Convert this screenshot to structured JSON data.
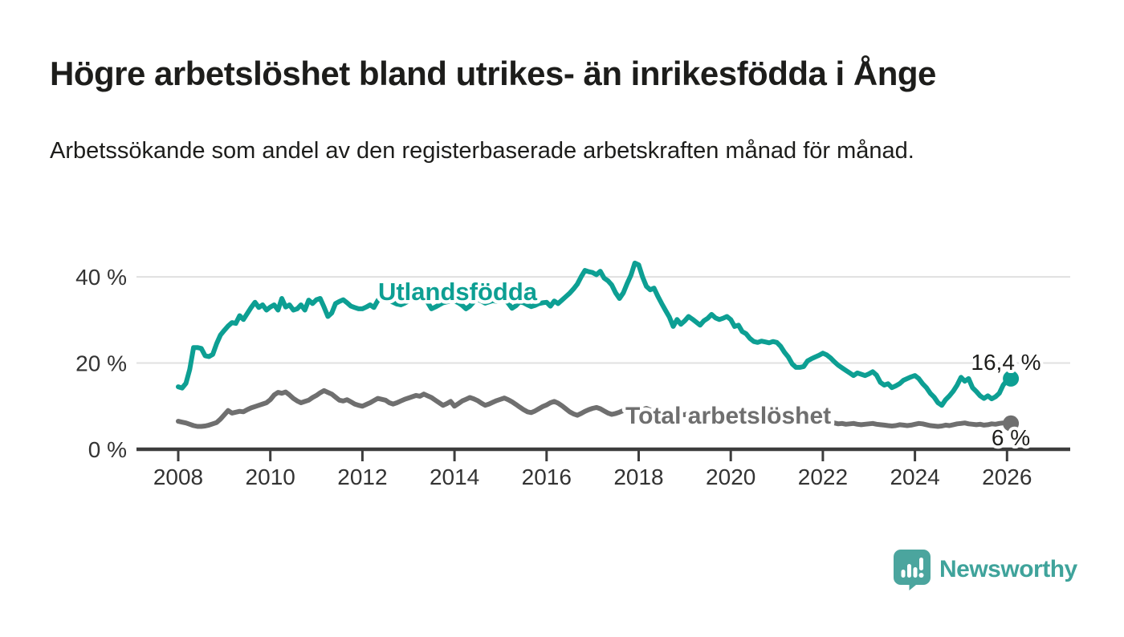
{
  "header": {
    "title": "Högre arbetslöshet bland utrikes- än inrikesfödda i Ånge",
    "subtitle": "Arbetssökande som andel av den registerbaserade arbetskraften månad för månad."
  },
  "footer": {
    "brand": "Newsworthy"
  },
  "colors": {
    "accent_teal": "#0d9f93",
    "line_gray": "#6f6f6f",
    "grid": "#e0e0e0",
    "axis": "#3d3d3d",
    "text": "#1d1d1b",
    "logo_teal": "#4ba59e"
  },
  "chart_data": {
    "type": "line",
    "title": "",
    "xlabel": "",
    "ylabel": "",
    "x_start_year": 2008,
    "interval": "monthly",
    "ylim": [
      0,
      44
    ],
    "grid": "horizontal",
    "x_axis": {
      "ticks": [
        2008,
        2010,
        2012,
        2014,
        2016,
        2018,
        2020,
        2022,
        2024,
        2026
      ]
    },
    "y_axis": {
      "ticks": [
        {
          "label": "0 %",
          "value": 0
        },
        {
          "label": "20 %",
          "value": 20
        },
        {
          "label": "40 %",
          "value": 40
        }
      ]
    },
    "series": [
      {
        "name": "Utlandsfödda",
        "color": "#0d9f93",
        "end_label": "16,4 %",
        "end_value": 16.4,
        "values": [
          14.5,
          14.2,
          15.3,
          18.5,
          23.6,
          23.6,
          23.4,
          21.7,
          21.5,
          22.0,
          24.5,
          26.5,
          27.6,
          28.6,
          29.4,
          29.2,
          31.0,
          30.1,
          31.5,
          32.9,
          34.1,
          32.9,
          33.5,
          32.3,
          33.0,
          33.5,
          32.3,
          35.0,
          33.0,
          33.5,
          32.3,
          32.6,
          33.5,
          32.3,
          34.6,
          33.8,
          34.7,
          35.0,
          33.0,
          30.8,
          31.6,
          33.8,
          34.3,
          34.7,
          34.0,
          33.2,
          32.9,
          32.6,
          32.6,
          33.0,
          33.5,
          32.9,
          34.5,
          35.6,
          35.0,
          34.5,
          34.1,
          33.7,
          33.5,
          33.9,
          34.4,
          35.0,
          35.3,
          34.9,
          34.7,
          34.1,
          32.6,
          33.0,
          33.5,
          34.0,
          34.2,
          34.4,
          34.4,
          34.0,
          33.4,
          32.6,
          33.2,
          34.2,
          34.8,
          34.4,
          33.9,
          34.2,
          34.5,
          34.3,
          34.5,
          34.8,
          33.9,
          32.7,
          33.3,
          34.2,
          34.0,
          33.5,
          33.1,
          33.4,
          33.8,
          34.0,
          34.1,
          33.2,
          34.4,
          33.8,
          34.6,
          35.4,
          36.2,
          37.2,
          38.3,
          40.0,
          41.5,
          41.2,
          41.0,
          40.5,
          41.3,
          39.7,
          39.1,
          38.1,
          36.3,
          35.0,
          36.3,
          38.5,
          40.4,
          43.2,
          42.8,
          40.0,
          37.8,
          37.0,
          37.4,
          35.5,
          33.8,
          32.2,
          30.7,
          28.5,
          30.1,
          29.0,
          29.8,
          30.8,
          30.2,
          29.5,
          28.8,
          29.8,
          30.4,
          31.3,
          30.5,
          30.1,
          30.4,
          30.8,
          30.1,
          28.5,
          28.8,
          27.3,
          26.8,
          25.7,
          25.0,
          24.8,
          25.1,
          24.9,
          24.7,
          25.0,
          24.8,
          23.9,
          22.5,
          21.4,
          19.8,
          19.0,
          19.0,
          19.2,
          20.5,
          21.0,
          21.4,
          21.8,
          22.3,
          21.9,
          21.2,
          20.3,
          19.5,
          18.9,
          18.3,
          17.7,
          17.1,
          17.7,
          17.4,
          17.1,
          17.5,
          18.0,
          17.2,
          15.5,
          14.9,
          15.2,
          14.3,
          14.7,
          15.2,
          16.0,
          16.4,
          16.8,
          17.1,
          16.4,
          15.2,
          14.3,
          13.0,
          12.1,
          10.8,
          10.2,
          11.5,
          12.4,
          13.5,
          14.9,
          16.7,
          15.8,
          16.4,
          14.3,
          13.4,
          12.4,
          11.8,
          12.4,
          11.7,
          12.2,
          13.0,
          14.9,
          16.0,
          16.4
        ]
      },
      {
        "name": "Total arbetslöshet",
        "color": "#6f6f6f",
        "end_label": "6 %",
        "end_value": 6.0,
        "values": [
          6.5,
          6.3,
          6.1,
          5.8,
          5.5,
          5.3,
          5.3,
          5.4,
          5.6,
          5.9,
          6.2,
          7.0,
          8.0,
          9.0,
          8.4,
          8.6,
          8.8,
          8.7,
          9.2,
          9.6,
          9.9,
          10.2,
          10.5,
          10.8,
          11.5,
          12.6,
          13.2,
          13.0,
          13.3,
          12.6,
          11.8,
          11.2,
          10.8,
          11.1,
          11.4,
          12.0,
          12.5,
          13.1,
          13.6,
          13.2,
          12.8,
          12.1,
          11.4,
          11.2,
          11.5,
          11.0,
          10.5,
          10.2,
          10.0,
          10.4,
          10.8,
          11.3,
          11.8,
          11.6,
          11.4,
          10.8,
          10.5,
          10.8,
          11.2,
          11.6,
          11.9,
          12.2,
          12.5,
          12.3,
          12.8,
          12.4,
          12.0,
          11.4,
          10.8,
          10.2,
          10.6,
          11.1,
          10.0,
          10.6,
          11.2,
          11.6,
          12.0,
          11.7,
          11.3,
          10.7,
          10.2,
          10.5,
          10.9,
          11.3,
          11.6,
          11.9,
          11.5,
          11.0,
          10.4,
          9.8,
          9.2,
          8.7,
          8.5,
          8.9,
          9.4,
          9.9,
          10.3,
          10.8,
          11.1,
          10.7,
          10.1,
          9.4,
          8.7,
          8.2,
          7.9,
          8.3,
          8.8,
          9.2,
          9.5,
          9.7,
          9.4,
          8.9,
          8.4,
          8.1,
          8.3,
          8.6,
          9.0,
          9.3,
          9.5,
          9.2,
          8.9,
          9.2,
          9.5,
          9.1,
          8.7,
          8.4,
          8.2,
          8.5,
          8.8,
          8.6,
          8.3,
          8.1,
          8.0,
          8.3,
          8.6,
          8.4,
          8.1,
          7.9,
          7.7,
          7.9,
          8.2,
          8.0,
          7.8,
          7.6,
          7.8,
          8.1,
          8.4,
          8.7,
          8.5,
          8.2,
          8.0,
          7.8,
          7.6,
          7.4,
          7.2,
          7.0,
          6.9,
          7.1,
          7.3,
          7.0,
          6.8,
          6.6,
          6.4,
          6.3,
          6.2,
          6.4,
          6.5,
          6.3,
          6.2,
          6.4,
          6.3,
          6.1,
          5.9,
          6.0,
          5.8,
          5.9,
          6.0,
          5.8,
          5.7,
          5.8,
          5.9,
          6.0,
          5.8,
          5.7,
          5.6,
          5.5,
          5.4,
          5.5,
          5.7,
          5.6,
          5.5,
          5.6,
          5.8,
          6.0,
          5.9,
          5.7,
          5.5,
          5.4,
          5.3,
          5.4,
          5.6,
          5.5,
          5.7,
          5.9,
          6.0,
          6.1,
          5.9,
          5.8,
          5.7,
          5.8,
          5.6,
          5.7,
          5.9,
          5.8,
          6.0,
          6.1,
          6.1,
          6.0
        ]
      }
    ]
  }
}
